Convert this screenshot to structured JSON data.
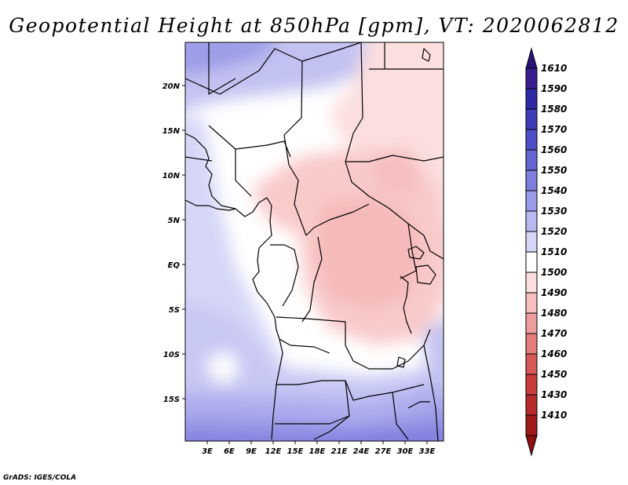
{
  "title": "Geopotential Height at 850hPa [gpm], VT: 2020062812",
  "credit": "GrADS: IGES/COLA",
  "map": {
    "lat_labels": [
      "20N",
      "15N",
      "10N",
      "5N",
      "EQ",
      "5S",
      "10S",
      "15S"
    ],
    "lon_labels": [
      "3E",
      "6E",
      "9E",
      "12E",
      "15E",
      "18E",
      "21E",
      "24E",
      "27E",
      "30E",
      "33E"
    ]
  },
  "colorbar": {
    "levels": [
      {
        "label": "1610",
        "color": "#3a1e90"
      },
      {
        "label": "1590",
        "color": "#2e2aa6"
      },
      {
        "label": "1580",
        "color": "#3d3db8"
      },
      {
        "label": "1570",
        "color": "#4e4ec6"
      },
      {
        "label": "1560",
        "color": "#6666d2"
      },
      {
        "label": "1550",
        "color": "#7e7ede"
      },
      {
        "label": "1540",
        "color": "#9a9aea"
      },
      {
        "label": "1530",
        "color": "#b9b9f2"
      },
      {
        "label": "1520",
        "color": "#d6d6f8"
      },
      {
        "label": "1510",
        "color": "#ffffff"
      },
      {
        "label": "1500",
        "color": "#fcdede"
      },
      {
        "label": "1490",
        "color": "#f6bebe"
      },
      {
        "label": "1480",
        "color": "#ee9e9e"
      },
      {
        "label": "1470",
        "color": "#e47c7c"
      },
      {
        "label": "1460",
        "color": "#d85858"
      },
      {
        "label": "1450",
        "color": "#cb3c3c"
      },
      {
        "label": "1430",
        "color": "#b82a2a"
      },
      {
        "label": "1410",
        "color": "#a01a1a"
      }
    ],
    "top_color": "#2a1478",
    "bottom_color": "#8c1010"
  }
}
